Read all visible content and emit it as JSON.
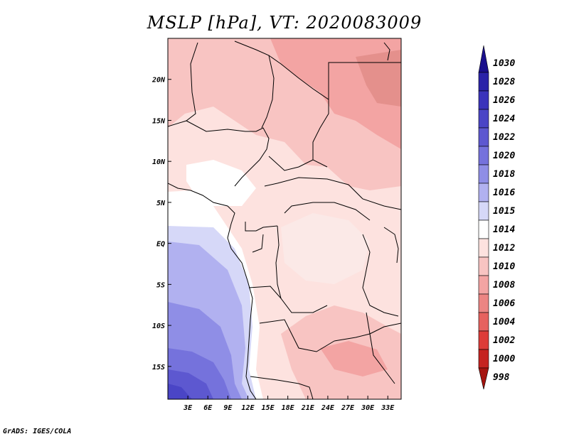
{
  "title": "MSLP [hPa], VT: 2020083009",
  "footer": "GrADS: IGES/COLA",
  "map": {
    "lon_range": [
      0,
      35
    ],
    "lat_range": [
      -19,
      25
    ],
    "lon_ticks": [
      "3E",
      "6E",
      "9E",
      "12E",
      "15E",
      "18E",
      "21E",
      "24E",
      "27E",
      "30E",
      "33E"
    ],
    "lon_values": [
      3,
      6,
      9,
      12,
      15,
      18,
      21,
      24,
      27,
      30,
      33
    ],
    "lat_ticks": [
      "20N",
      "15N",
      "10N",
      "5N",
      "EQ",
      "5S",
      "10S",
      "15S"
    ],
    "lat_values": [
      20,
      15,
      10,
      5,
      0,
      -5,
      -10,
      -15
    ]
  },
  "colorbar": {
    "labels": [
      "1030",
      "1028",
      "1026",
      "1024",
      "1022",
      "1020",
      "1018",
      "1016",
      "1015",
      "1014",
      "1012",
      "1010",
      "1008",
      "1006",
      "1004",
      "1002",
      "1000",
      "998"
    ],
    "colors": [
      "#1a0f8c",
      "#2a22a8",
      "#3a33bb",
      "#4a45c6",
      "#5d58d0",
      "#7572dc",
      "#8f8ee6",
      "#b1b1f0",
      "#d6d8f8",
      "#ffffff",
      "#fde2df",
      "#f8c4c2",
      "#f3a4a3",
      "#ec8583",
      "#e6625f",
      "#dd3c38",
      "#c52320",
      "#a5140f"
    ]
  }
}
